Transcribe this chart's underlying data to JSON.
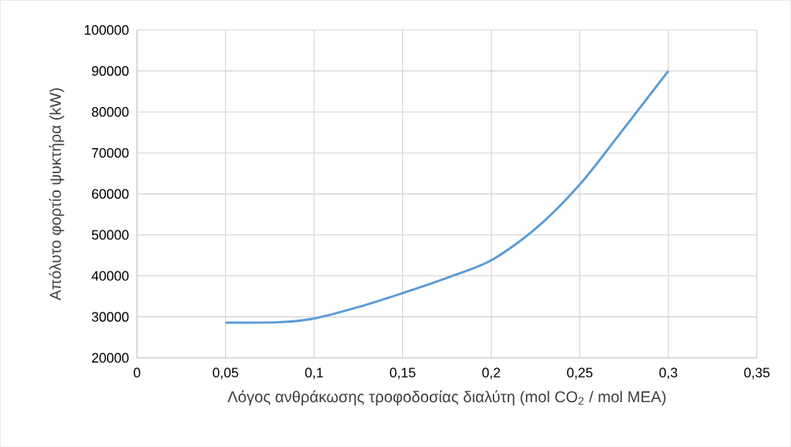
{
  "chart_data": {
    "type": "line",
    "xlabel": "Λόγος ανθράκωσης τροφοδοσίας διαλύτη (mol CO$_{2}$ / mol MEA)",
    "ylabel": "Απόλυτο φορτίο ψυκτήρα (kW)",
    "x": [
      0.05,
      0.08,
      0.1,
      0.125,
      0.15,
      0.175,
      0.2,
      0.225,
      0.25,
      0.275,
      0.3
    ],
    "series": [
      {
        "color": "#5b9bd5",
        "values": [
          28600,
          28700,
          29600,
          32400,
          35800,
          39500,
          43800,
          51500,
          62300,
          76000,
          90000
        ]
      }
    ],
    "xlim": [
      0,
      0.35
    ],
    "xticks": [
      0,
      {
        "value": 0.05,
        "label": "0,05"
      },
      {
        "value": 0.1,
        "label": "0,1"
      },
      {
        "value": 0.15,
        "label": "0,15"
      },
      {
        "value": 0.2,
        "label": "0,2"
      },
      {
        "value": 0.25,
        "label": "0,25"
      },
      {
        "value": 0.3,
        "label": "0,3"
      },
      {
        "value": 0.35,
        "label": "0,35"
      }
    ],
    "ylim": [
      20000,
      100000
    ],
    "yticks": [
      20000,
      30000,
      40000,
      50000,
      60000,
      70000,
      80000,
      90000,
      100000
    ],
    "grid": true,
    "marker": "none",
    "line_style": "solid"
  }
}
